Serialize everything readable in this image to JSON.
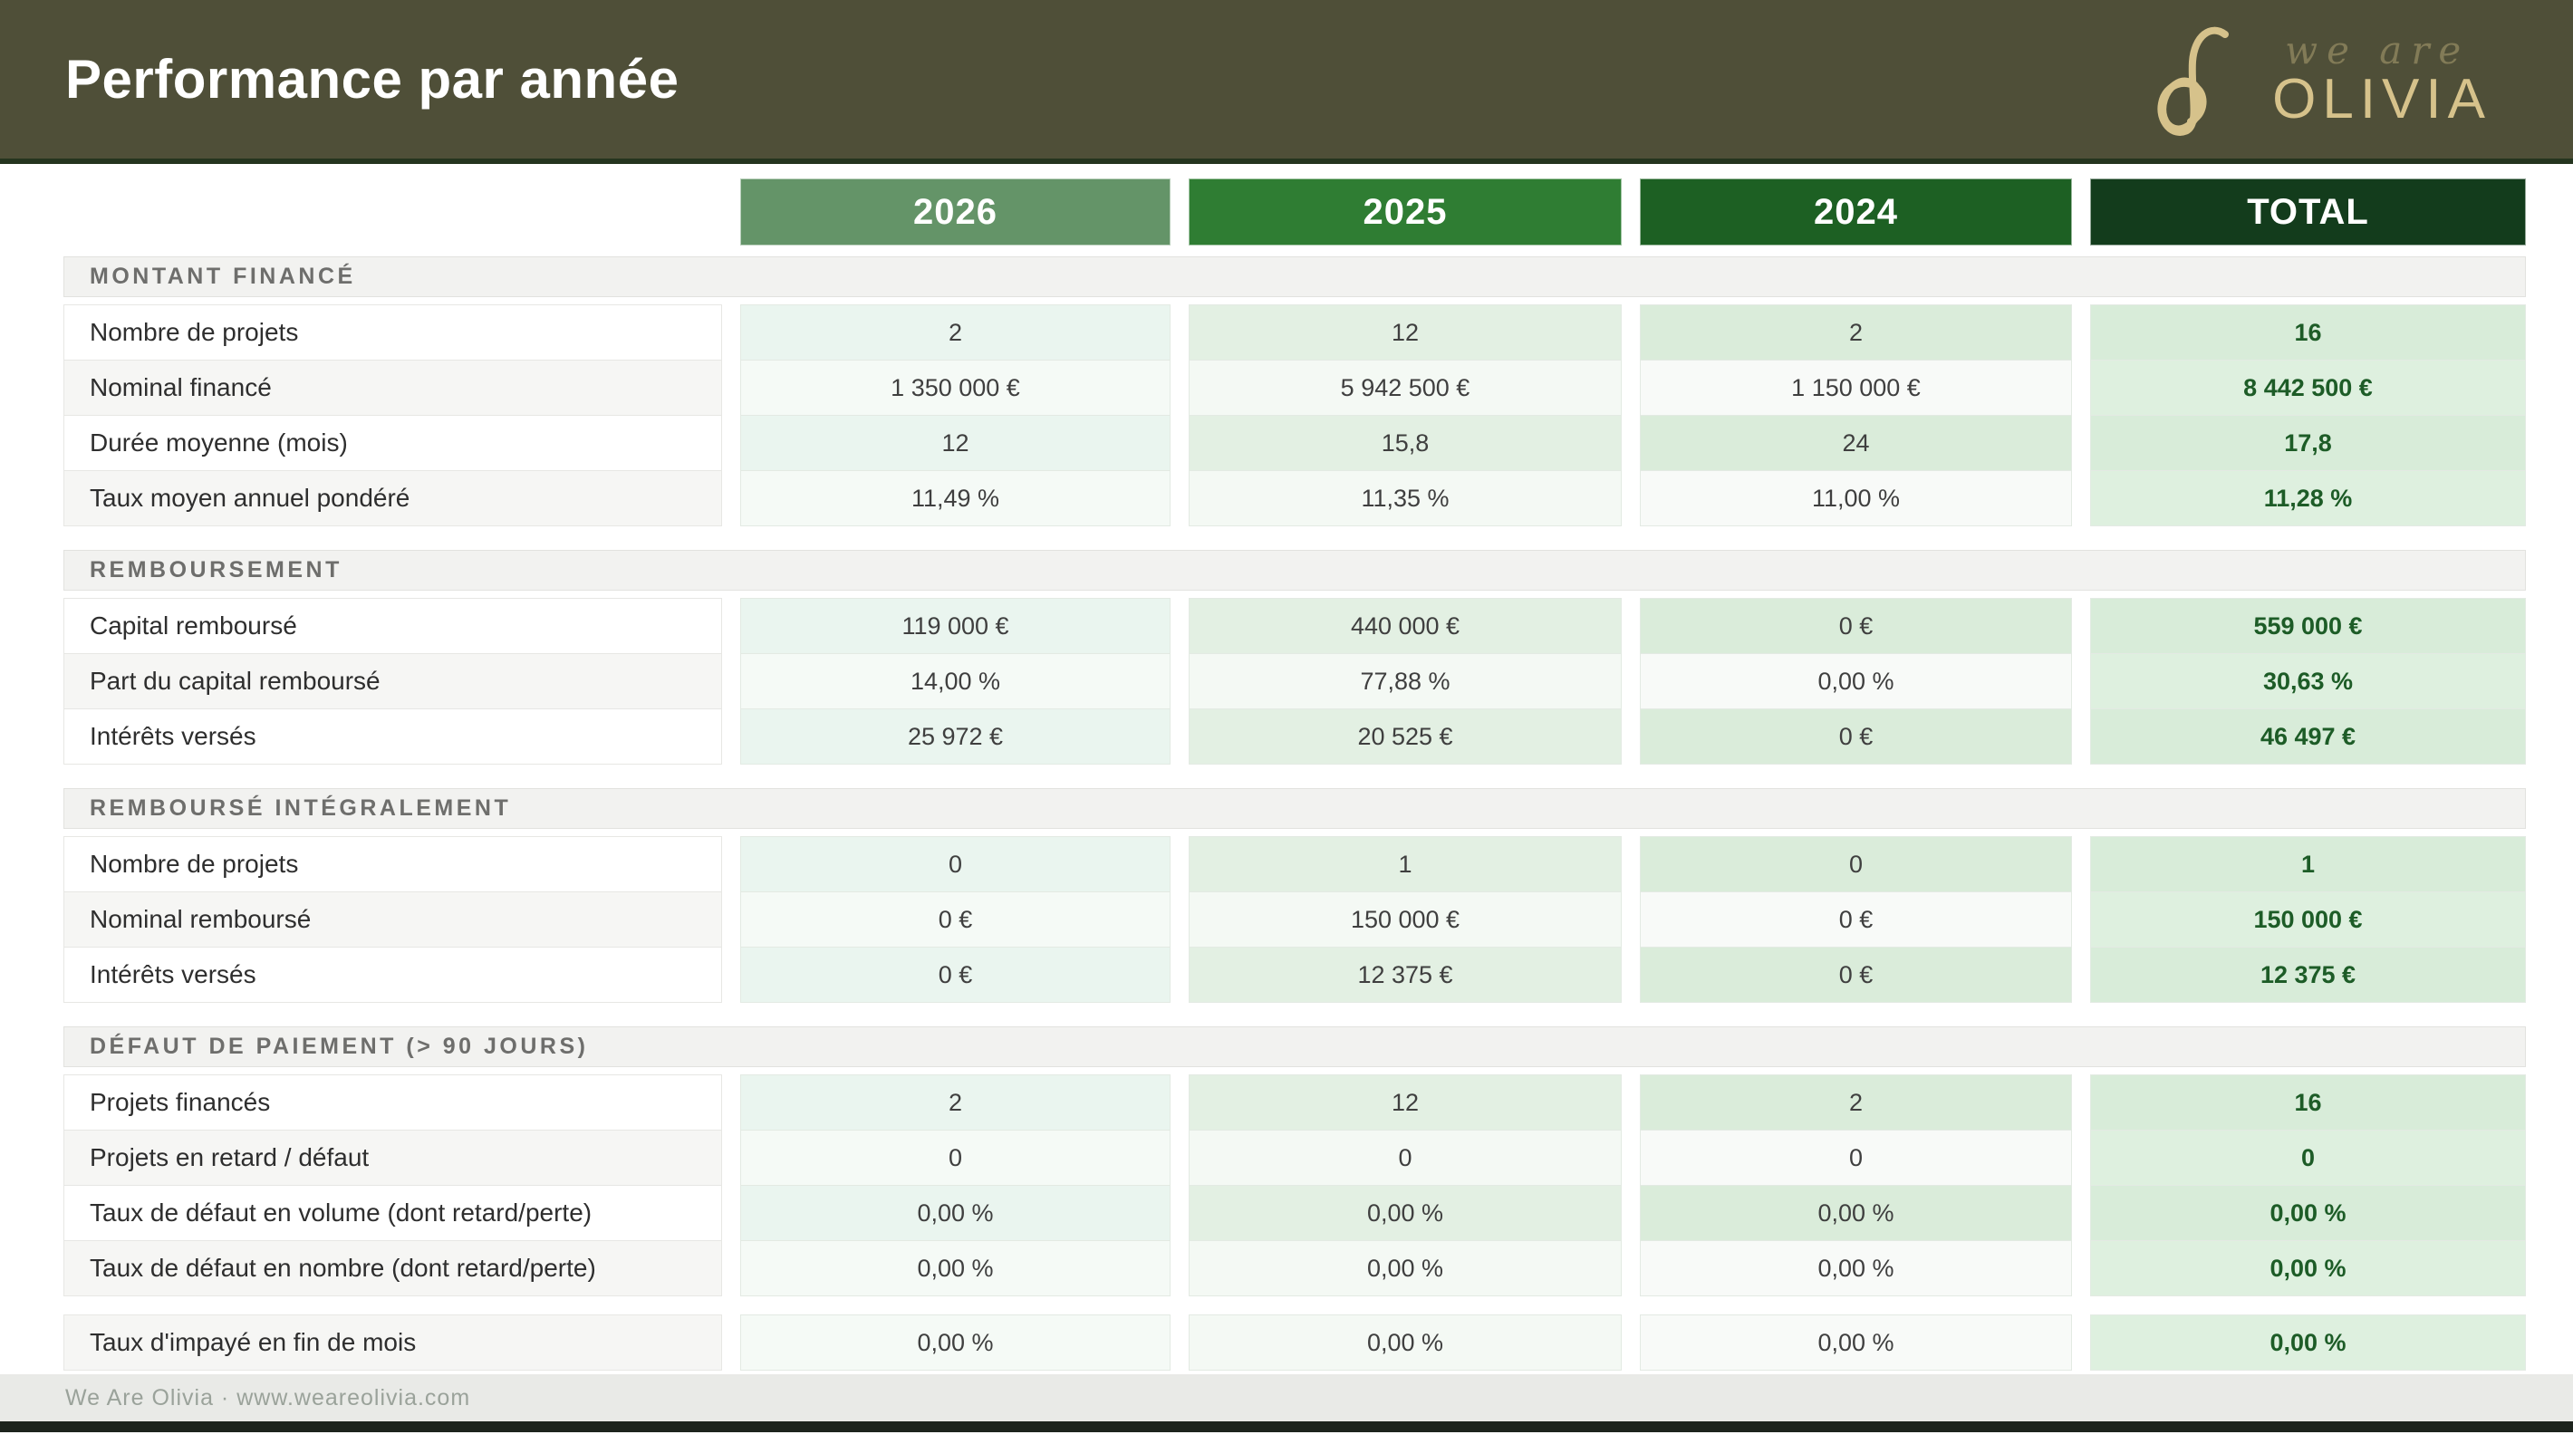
{
  "header": {
    "title": "Performance par année",
    "logo": {
      "script_text": "we are",
      "brand": "OLIVIA"
    }
  },
  "columns": [
    {
      "label": "2026",
      "color": "#649468"
    },
    {
      "label": "2025",
      "color": "#2F7D33"
    },
    {
      "label": "2024",
      "color": "#1D6023"
    },
    {
      "label": "TOTAL",
      "color": "#133C1C"
    }
  ],
  "sections": [
    {
      "title": "MONTANT FINANCÉ",
      "rows": [
        {
          "label": "Nombre de projets",
          "values": [
            "2",
            "12",
            "2",
            "16"
          ]
        },
        {
          "label": "Nominal financé",
          "values": [
            "1 350 000 €",
            "5 942 500 €",
            "1 150 000 €",
            "8 442 500 €"
          ]
        },
        {
          "label": "Durée moyenne (mois)",
          "values": [
            "12",
            "15,8",
            "24",
            "17,8"
          ]
        },
        {
          "label": "Taux moyen annuel pondéré",
          "values": [
            "11,49 %",
            "11,35 %",
            "11,00 %",
            "11,28 %"
          ]
        }
      ]
    },
    {
      "title": "REMBOURSEMENT",
      "rows": [
        {
          "label": "Capital remboursé",
          "values": [
            "119 000 €",
            "440 000 €",
            "0 €",
            "559 000 €"
          ]
        },
        {
          "label": "Part du capital remboursé",
          "values": [
            "14,00 %",
            "77,88 %",
            "0,00 %",
            "30,63 %"
          ]
        },
        {
          "label": "Intérêts versés",
          "values": [
            "25 972 €",
            "20 525 €",
            "0 €",
            "46 497 €"
          ]
        }
      ]
    },
    {
      "title": "REMBOURSÉ INTÉGRALEMENT",
      "rows": [
        {
          "label": "Nombre de projets",
          "values": [
            "0",
            "1",
            "0",
            "1"
          ]
        },
        {
          "label": "Nominal remboursé",
          "values": [
            "0 €",
            "150 000 €",
            "0 €",
            "150 000 €"
          ]
        },
        {
          "label": "Intérêts versés",
          "values": [
            "0 €",
            "12 375 €",
            "0 €",
            "12 375 €"
          ]
        }
      ]
    },
    {
      "title": "DÉFAUT DE PAIEMENT (> 90 JOURS)",
      "rows": [
        {
          "label": "Projets financés",
          "values": [
            "2",
            "12",
            "2",
            "16"
          ]
        },
        {
          "label": "Projets en retard / défaut",
          "values": [
            "0",
            "0",
            "0",
            "0"
          ]
        },
        {
          "label": "Taux de défaut en volume (dont retard/perte)",
          "values": [
            "0,00 %",
            "0,00 %",
            "0,00 %",
            "0,00 %"
          ]
        },
        {
          "label": "Taux de défaut en nombre (dont retard/perte)",
          "values": [
            "0,00 %",
            "0,00 %",
            "0,00 %",
            "0,00 %"
          ]
        }
      ]
    }
  ],
  "standalone_row": {
    "label": "Taux d'impayé en fin de mois",
    "values": [
      "0,00 %",
      "0,00 %",
      "0,00 %",
      "0,00 %"
    ]
  },
  "footer": {
    "text": "We Are Olivia  ·  www.weareolivia.com"
  },
  "colors": {
    "header_bar": "#4F4F38",
    "accent_gold": "#D6C28B",
    "total_text": "#1D5C27",
    "footer_strip": "#1D241D"
  }
}
